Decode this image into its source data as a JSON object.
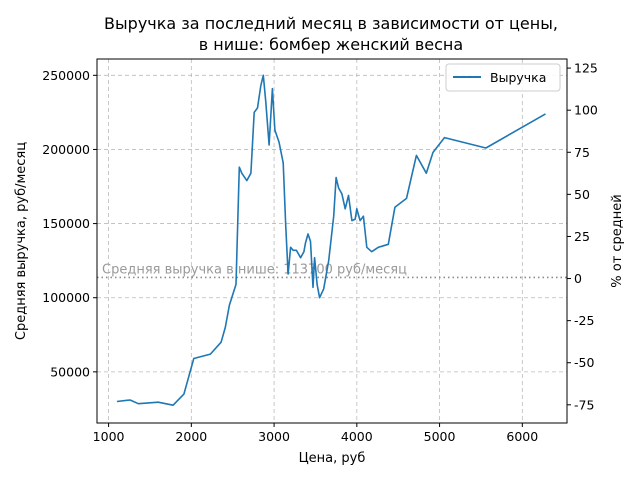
{
  "chart_data": {
    "type": "line",
    "title_line1": "Выручка за последний месяц в зависимости от цены,",
    "title_line2": "в нише: бомбер женский весна",
    "xlabel": "Цена, руб",
    "ylabel": "Средняя выручка, руб/месяц",
    "y2label": "% от средней",
    "xlim": [
      860,
      6540
    ],
    "ylim": [
      15500,
      261000
    ],
    "y2lim": [
      -85.8,
      130.4
    ],
    "xticks": [
      1000,
      2000,
      3000,
      4000,
      5000,
      6000
    ],
    "yticks": [
      50000,
      100000,
      150000,
      200000,
      250000
    ],
    "y2ticks": [
      -75,
      -50,
      -25,
      0,
      25,
      50,
      75,
      100,
      125
    ],
    "grid": true,
    "legend_position": "top-right",
    "average_revenue": 113700,
    "average_label": "Средняя выручка в нише: 113700 руб/месяц",
    "series": [
      {
        "name": "Выручка",
        "color": "#1f77b4",
        "x": [
          1100,
          1260,
          1360,
          1600,
          1780,
          1910,
          2030,
          2230,
          2360,
          2410,
          2460,
          2540,
          2580,
          2610,
          2670,
          2720,
          2760,
          2800,
          2840,
          2870,
          2900,
          2940,
          2980,
          3010,
          3060,
          3110,
          3140,
          3170,
          3200,
          3230,
          3270,
          3320,
          3360,
          3380,
          3410,
          3440,
          3470,
          3490,
          3520,
          3550,
          3600,
          3660,
          3720,
          3750,
          3780,
          3820,
          3860,
          3900,
          3940,
          3980,
          4000,
          4040,
          4080,
          4120,
          4180,
          4260,
          4380,
          4460,
          4600,
          4720,
          4840,
          4920,
          5060,
          5560,
          6280
        ],
        "y": [
          30000,
          31000,
          28500,
          29500,
          27500,
          35000,
          59000,
          62000,
          70000,
          80000,
          95000,
          109000,
          188000,
          184000,
          179000,
          184000,
          225000,
          228000,
          243000,
          250000,
          232000,
          203000,
          241000,
          213000,
          205000,
          191000,
          149000,
          116000,
          134000,
          132000,
          132000,
          127000,
          131000,
          137000,
          143000,
          138000,
          107000,
          127000,
          109000,
          100000,
          106000,
          125000,
          155000,
          181000,
          174000,
          170000,
          160000,
          169000,
          152000,
          153000,
          160000,
          152000,
          155000,
          134000,
          131000,
          134000,
          136000,
          161000,
          167000,
          196000,
          184000,
          198000,
          208000,
          201000,
          224000
        ]
      }
    ]
  }
}
